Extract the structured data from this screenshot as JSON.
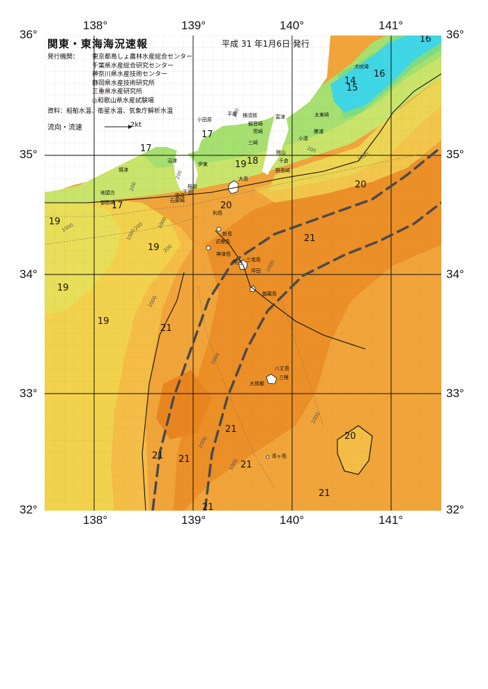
{
  "title": "関東・東海海況速報",
  "date": "平成 31 年1月6日 発行",
  "agency_label": "発行機関：",
  "agencies": [
    "東京都島しょ農林水産総合センター",
    "千葉県水産総合研究センター",
    "神奈川県水産技術センター",
    "静岡県水産技術研究所",
    "三重県水産研究所",
    "◎和歌山県水産試験場"
  ],
  "source": "資料：船舶水温、衛星水温、気象庁解析水温",
  "legend": {
    "label": "流向・流速",
    "unit": "2kt"
  },
  "axes": {
    "lon_ticks": [
      "138°",
      "139°",
      "140°",
      "141°"
    ],
    "lat_ticks_left": [
      "36°",
      "35°",
      "34°",
      "33°",
      "32°"
    ],
    "lat_ticks_right": [
      "36°",
      "35°",
      "34°",
      "33°",
      "32°"
    ]
  },
  "place_names": [
    "犬吠埼",
    "太東崎",
    "勝浦",
    "小湊",
    "富津",
    "横須賀",
    "平塚",
    "観音崎",
    "荒崎",
    "小田原",
    "三崎",
    "館山",
    "千倉",
    "野島崎",
    "大島",
    "伊東",
    "沼津",
    "焼津",
    "稲取",
    "下田",
    "雲見",
    "石廊崎",
    "地頭方",
    "御前崎",
    "利島",
    "新島",
    "式根島",
    "神津島",
    "三宅島",
    "坪田",
    "阿古",
    "御蔵島",
    "八丈島",
    "三根",
    "大賀郷",
    "青ヶ島"
  ],
  "temperature_labels": [
    "16",
    "16",
    "14",
    "15",
    "17",
    "17",
    "17",
    "18",
    "19",
    "20",
    "20",
    "19",
    "21",
    "19",
    "19",
    "19",
    "21",
    "21",
    "21",
    "21",
    "21",
    "21",
    "20",
    "21"
  ],
  "depth_labels": [
    "200",
    "200",
    "200",
    "200",
    "200",
    "200",
    "1000",
    "1000",
    "1000",
    "1000",
    "1000",
    "1000",
    "1000",
    "1000",
    "1000",
    "1000"
  ],
  "colors": {
    "cold_cyan": "#3fd6e6",
    "green_15": "#7fe08a",
    "green_17": "#a8e86a",
    "yellow_19": "#f2d54a",
    "orange_20": "#f4b23d",
    "orange_21": "#ef9a2a",
    "deep_22": "#e8821e",
    "land": "#ffffff",
    "kuroshio_axis": "#4a4a4a"
  }
}
